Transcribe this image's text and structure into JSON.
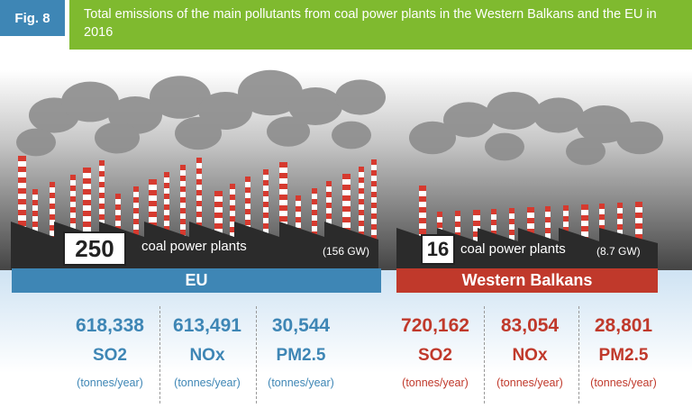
{
  "figure": {
    "tag": "Fig. 8",
    "title": "Total emissions of the main pollutants from coal power plants in the Western Balkans and the EU in 2016"
  },
  "eu": {
    "count": "250",
    "label": "coal power plants",
    "capacity": "(156 GW)",
    "region": "EU",
    "stats": [
      {
        "value": "618,338",
        "pollutant": "SO2",
        "unit": "(tonnes/year)"
      },
      {
        "value": "613,491",
        "pollutant": "NOx",
        "unit": "(tonnes/year)"
      },
      {
        "value": "30,544",
        "pollutant": "PM2.5",
        "unit": "(tonnes/year)"
      }
    ]
  },
  "wb": {
    "count": "16",
    "label": "coal power plants",
    "capacity": "(8.7 GW)",
    "region": "Western Balkans",
    "stats": [
      {
        "value": "720,162",
        "pollutant": "SO2",
        "unit": "(tonnes/year)"
      },
      {
        "value": "83,054",
        "pollutant": "NOx",
        "unit": "(tonnes/year)"
      },
      {
        "value": "28,801",
        "pollutant": "PM2.5",
        "unit": "(tonnes/year)"
      }
    ]
  },
  "colors": {
    "eu": "#3e86b5",
    "wb": "#c0392b",
    "header": "#7fba2f"
  }
}
